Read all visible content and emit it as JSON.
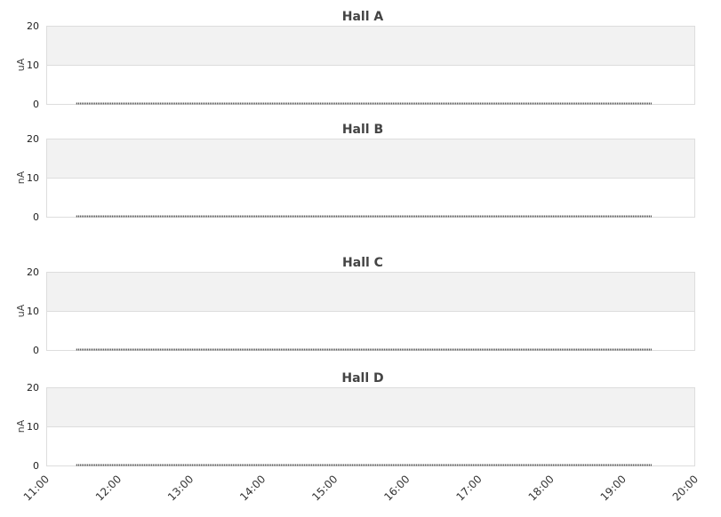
{
  "chart_data": [
    {
      "type": "line",
      "title": "Hall A",
      "ylabel": "uA",
      "ylim": [
        0,
        20
      ],
      "yticks": [
        "0",
        "10",
        "20"
      ],
      "grid": true,
      "x": [
        "11:25",
        "19:24"
      ],
      "y": [
        0,
        0
      ]
    },
    {
      "type": "line",
      "title": "Hall B",
      "ylabel": "nA",
      "ylim": [
        0,
        20
      ],
      "yticks": [
        "0",
        "10",
        "20"
      ],
      "grid": true,
      "x": [
        "11:25",
        "19:24"
      ],
      "y": [
        0,
        0
      ]
    },
    {
      "type": "line",
      "title": "Hall C",
      "ylabel": "uA",
      "ylim": [
        0,
        20
      ],
      "yticks": [
        "0",
        "10",
        "20"
      ],
      "grid": true,
      "x": [
        "11:25",
        "19:24"
      ],
      "y": [
        0,
        0
      ]
    },
    {
      "type": "line",
      "title": "Hall D",
      "ylabel": "nA",
      "ylim": [
        0,
        20
      ],
      "yticks": [
        "0",
        "10",
        "20"
      ],
      "grid": true,
      "x": [
        "11:25",
        "19:24"
      ],
      "y": [
        0,
        0
      ]
    }
  ],
  "xaxis": {
    "xlim": [
      "11:00",
      "20:00"
    ],
    "ticks": [
      "11:00",
      "12:00",
      "13:00",
      "14:00",
      "15:00",
      "16:00",
      "17:00",
      "18:00",
      "19:00",
      "20:00"
    ]
  },
  "colors": {
    "band": "#f2f2f2",
    "grid": "#dddddd",
    "line": "#333333",
    "title": "#444444"
  }
}
